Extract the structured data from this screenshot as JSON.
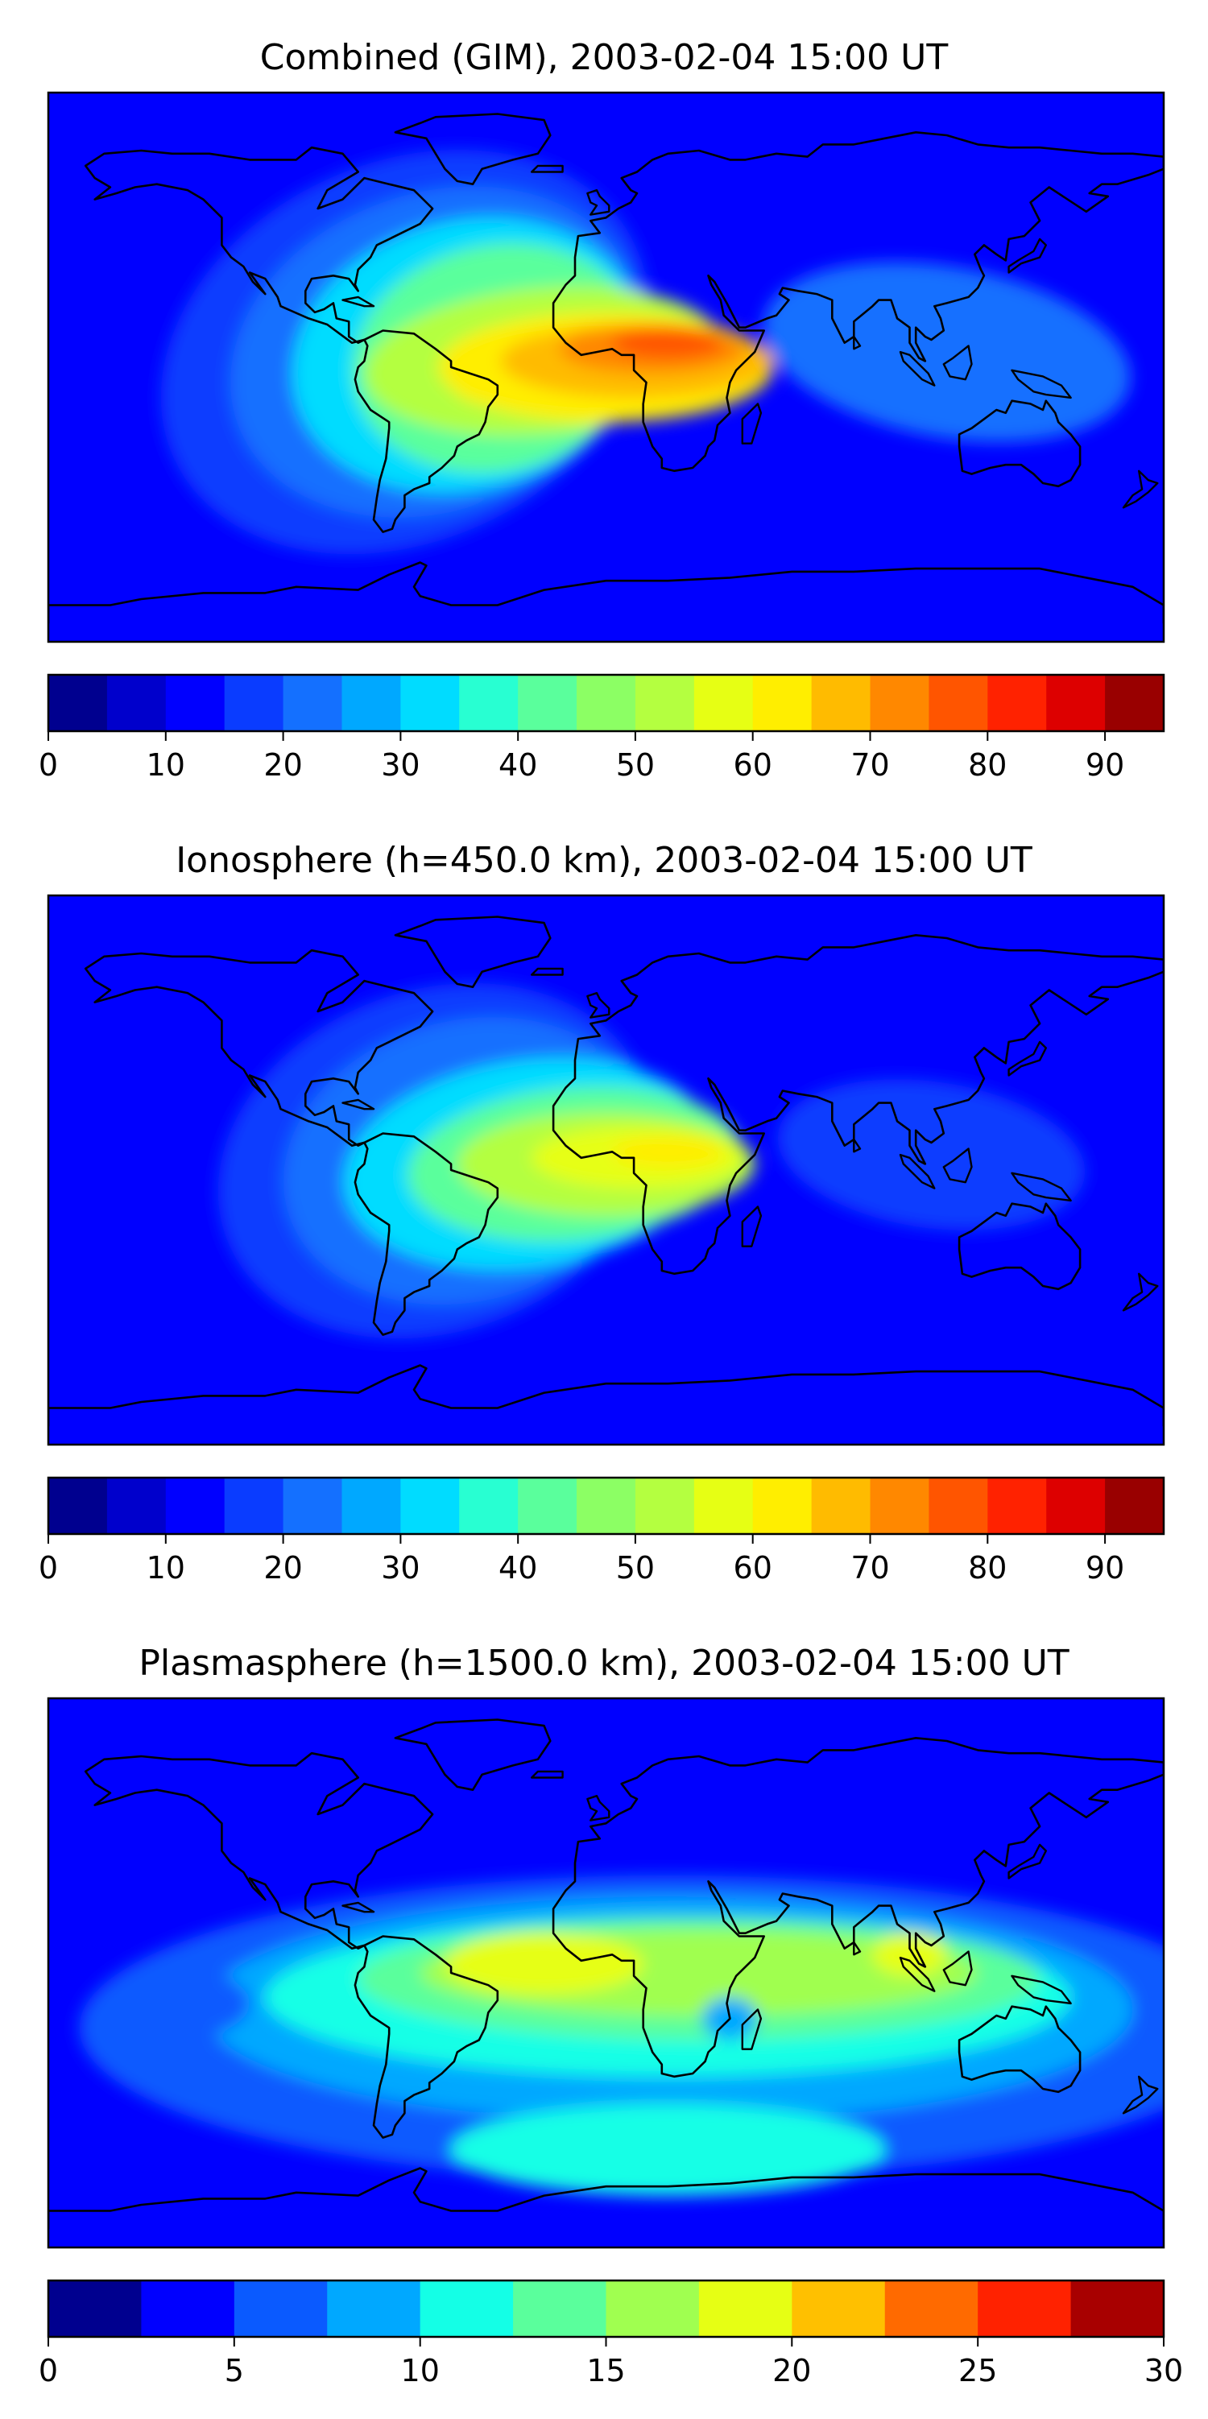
{
  "figure": {
    "panels": [
      {
        "title": "Combined (GIM), 2003-02-04 15:00 UT",
        "colorbar": {
          "colors": [
            "#00008f",
            "#0000cc",
            "#0000ff",
            "#0a3cff",
            "#1470ff",
            "#00a8ff",
            "#00dcff",
            "#28ffd2",
            "#5aff9c",
            "#8cff64",
            "#b4ff40",
            "#e6ff14",
            "#ffee00",
            "#ffbb00",
            "#ff8800",
            "#ff5500",
            "#ff2200",
            "#dd0000",
            "#990000"
          ],
          "ticks": [
            "0",
            "10",
            "20",
            "30",
            "40",
            "50",
            "60",
            "70",
            "80",
            "90"
          ],
          "tick_values": [
            0,
            10,
            20,
            30,
            40,
            50,
            60,
            70,
            80,
            90
          ],
          "min": 0,
          "max": 95
        },
        "blobs": [
          {
            "lon": -65,
            "lat": 5,
            "rx": 82,
            "ry": 62,
            "rot": 25,
            "level": 3
          },
          {
            "lon": -55,
            "lat": 5,
            "rx": 68,
            "ry": 52,
            "rot": 20,
            "level": 4
          },
          {
            "lon": -45,
            "lat": 4,
            "rx": 57,
            "ry": 44,
            "rot": 15,
            "level": 6
          },
          {
            "lon": -35,
            "lat": 3,
            "rx": 47,
            "ry": 37,
            "rot": 12,
            "level": 8
          },
          {
            "lon": -20,
            "lat": 2,
            "rx": 58,
            "ry": 24,
            "rot": 5,
            "level": 10
          },
          {
            "lon": 0,
            "lat": 0,
            "rx": 54,
            "ry": 18,
            "rot": 0,
            "level": 12
          },
          {
            "lon": -30,
            "lat": -2,
            "rx": 20,
            "ry": 10,
            "rot": 10,
            "level": 12
          },
          {
            "lon": 10,
            "lat": 2,
            "rx": 44,
            "ry": 12,
            "rot": 0,
            "level": 13
          },
          {
            "lon": 15,
            "lat": 6,
            "rx": 30,
            "ry": 8,
            "rot": 0,
            "level": 14
          },
          {
            "lon": 20,
            "lat": 8,
            "rx": 18,
            "ry": 5,
            "rot": 0,
            "level": 15
          },
          {
            "lon": 110,
            "lat": 5,
            "rx": 60,
            "ry": 28,
            "rot": -10,
            "level": 4
          }
        ]
      },
      {
        "title": "Ionosphere  (h=450.0 km), 2003-02-04 15:00 UT",
        "colorbar": {
          "colors": [
            "#00008f",
            "#0000cc",
            "#0000ff",
            "#0a3cff",
            "#1470ff",
            "#00a8ff",
            "#00dcff",
            "#28ffd2",
            "#5aff9c",
            "#8cff64",
            "#b4ff40",
            "#e6ff14",
            "#ffee00",
            "#ffbb00",
            "#ff8800",
            "#ff5500",
            "#ff2200",
            "#dd0000",
            "#990000"
          ],
          "ticks": [
            "0",
            "10",
            "20",
            "30",
            "40",
            "50",
            "60",
            "70",
            "80",
            "90"
          ],
          "tick_values": [
            0,
            10,
            20,
            30,
            40,
            50,
            60,
            70,
            80,
            90
          ],
          "min": 0,
          "max": 95
        },
        "blobs": [
          {
            "lon": -55,
            "lat": 3,
            "rx": 72,
            "ry": 56,
            "rot": 20,
            "level": 3
          },
          {
            "lon": -45,
            "lat": 3,
            "rx": 60,
            "ry": 46,
            "rot": 15,
            "level": 4
          },
          {
            "lon": -25,
            "lat": 2,
            "rx": 60,
            "ry": 34,
            "rot": 8,
            "level": 6
          },
          {
            "lon": -10,
            "lat": 2,
            "rx": 54,
            "ry": 25,
            "rot": 5,
            "level": 8
          },
          {
            "lon": 0,
            "lat": 2,
            "rx": 48,
            "ry": 17,
            "rot": 0,
            "level": 10
          },
          {
            "lon": 10,
            "lat": 4,
            "rx": 34,
            "ry": 10,
            "rot": 0,
            "level": 11
          },
          {
            "lon": 20,
            "lat": 6,
            "rx": 18,
            "ry": 5,
            "rot": 0,
            "level": 12
          },
          {
            "lon": 105,
            "lat": 5,
            "rx": 50,
            "ry": 24,
            "rot": -8,
            "level": 3
          }
        ]
      },
      {
        "title": "Plasmasphere (h=1500.0 km), 2003-02-04 15:00 UT",
        "colorbar": {
          "colors": [
            "#00008f",
            "#0000ff",
            "#0a5aff",
            "#00a8ff",
            "#14ffe6",
            "#5aff9c",
            "#a0ff50",
            "#e6ff14",
            "#ffc000",
            "#ff6a00",
            "#ff2200",
            "#a80000"
          ],
          "ticks": [
            "0",
            "5",
            "10",
            "15",
            "20",
            "25",
            "30"
          ],
          "tick_values": [
            0,
            5,
            10,
            15,
            20,
            25,
            30
          ],
          "min": 0,
          "max": 30
        },
        "blobs": [
          {
            "lon": 20,
            "lat": -18,
            "rx": 190,
            "ry": 50,
            "rot": 0,
            "level": 2
          },
          {
            "lon": 20,
            "lat": -12,
            "rx": 150,
            "ry": 37,
            "rot": 0,
            "level": 3
          },
          {
            "lon": 20,
            "lat": -8,
            "rx": 130,
            "ry": 26,
            "rot": 0,
            "level": 4
          },
          {
            "lon": 20,
            "lat": -58,
            "rx": 70,
            "ry": 15,
            "rot": 0,
            "level": 4
          },
          {
            "lon": 30,
            "lat": -2,
            "rx": 110,
            "ry": 20,
            "rot": 0,
            "level": 5
          },
          {
            "lon": 30,
            "lat": 0,
            "rx": 90,
            "ry": 14,
            "rot": 0,
            "level": 6
          },
          {
            "lon": -20,
            "lat": 3,
            "rx": 32,
            "ry": 10,
            "rot": 0,
            "level": 7
          },
          {
            "lon": 98,
            "lat": 6,
            "rx": 12,
            "ry": 7,
            "rot": 0,
            "level": 7
          },
          {
            "lon": 40,
            "lat": -15,
            "rx": 9,
            "ry": 7,
            "rot": 0,
            "level": 3
          },
          {
            "lon": -140,
            "lat": -10,
            "rx": 25,
            "ry": 12,
            "rot": 0,
            "level": 2
          }
        ]
      }
    ]
  }
}
